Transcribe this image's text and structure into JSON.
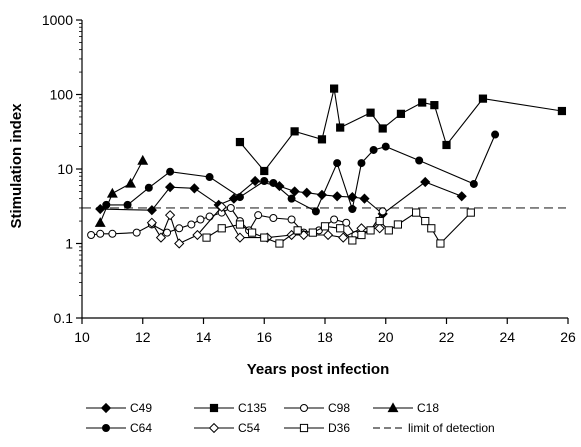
{
  "chart_data": {
    "type": "line",
    "title": "",
    "xlabel": "Years post infection",
    "ylabel": "Stimulation index",
    "xlim": [
      10,
      26
    ],
    "ylim": [
      0.1,
      1000
    ],
    "y_scale": "log",
    "x_ticks": [
      10,
      12,
      14,
      16,
      18,
      20,
      22,
      24,
      26
    ],
    "y_ticks": [
      0.1,
      1,
      10,
      100,
      1000
    ],
    "x_tick_labels": [
      "10",
      "12",
      "14",
      "16",
      "18",
      "20",
      "22",
      "24",
      "26"
    ],
    "y_tick_labels": [
      "0.1",
      "1",
      "10",
      "100",
      "1000"
    ],
    "grid": false,
    "legend_position": "bottom",
    "reference_line": {
      "name": "limit of detection",
      "y": 3,
      "style": "dashed"
    },
    "series": [
      {
        "name": "C49",
        "marker": "diamond-filled",
        "x": [
          10.6,
          12.3,
          12.9,
          13.7,
          14.5,
          15.0,
          15.7,
          16.5,
          17.0,
          17.4,
          17.9,
          18.4,
          18.9,
          19.3,
          19.9,
          21.3,
          22.5
        ],
        "y": [
          2.9,
          2.8,
          5.7,
          5.5,
          3.3,
          4.0,
          6.9,
          5.9,
          5.0,
          4.8,
          4.5,
          4.3,
          4.2,
          4.0,
          2.5,
          6.7,
          4.3
        ]
      },
      {
        "name": "C135",
        "marker": "square-filled",
        "x": [
          15.2,
          16.0,
          17.0,
          17.9,
          18.3,
          18.5,
          19.5,
          19.9,
          20.5,
          21.2,
          21.6,
          22.0,
          23.2,
          25.8
        ],
        "y": [
          23,
          9.4,
          32,
          25,
          120,
          36,
          57,
          35,
          55,
          78,
          72,
          21,
          88,
          60
        ]
      },
      {
        "name": "C98",
        "marker": "circle-open",
        "x": [
          10.3,
          10.6,
          11.0,
          11.8,
          12.3,
          12.8,
          13.2,
          13.6,
          13.9,
          14.2,
          14.6,
          14.9,
          15.2,
          15.5,
          15.8,
          16.3,
          16.9,
          17.3,
          17.8,
          18.3,
          18.7,
          19.0,
          19.5,
          19.9
        ],
        "y": [
          1.3,
          1.35,
          1.35,
          1.4,
          1.8,
          1.4,
          1.6,
          1.8,
          2.1,
          2.3,
          2.6,
          3.0,
          2.0,
          1.5,
          2.4,
          2.2,
          2.1,
          1.4,
          1.5,
          2.1,
          1.9,
          1.3,
          1.5,
          2.7
        ]
      },
      {
        "name": "C18",
        "marker": "triangle-filled",
        "x": [
          10.6,
          11.0,
          11.6,
          12.0
        ],
        "y": [
          1.9,
          4.7,
          6.4,
          13
        ]
      },
      {
        "name": "C64",
        "marker": "circle-filled",
        "x": [
          10.8,
          11.5,
          12.2,
          12.9,
          14.2,
          15.2,
          16.0,
          16.3,
          16.9,
          17.7,
          18.4,
          18.9,
          19.2,
          19.6,
          20.0,
          21.1,
          22.9,
          23.6
        ],
        "y": [
          3.3,
          3.3,
          5.6,
          9.2,
          7.8,
          4.2,
          6.9,
          6.5,
          4.0,
          2.7,
          12,
          2.9,
          12,
          18,
          20,
          13,
          6.3,
          29
        ]
      },
      {
        "name": "C54",
        "marker": "diamond-open",
        "x": [
          12.3,
          12.6,
          12.9,
          13.2,
          13.8,
          14.6,
          15.2,
          16.1,
          16.9,
          17.3,
          18.1,
          18.6,
          19.2,
          19.8
        ],
        "y": [
          1.9,
          1.2,
          2.4,
          1.0,
          1.3,
          3.1,
          1.2,
          1.2,
          1.3,
          1.3,
          1.3,
          1.2,
          1.6,
          1.6
        ]
      },
      {
        "name": "D36",
        "marker": "square-open",
        "x": [
          14.1,
          14.6,
          15.2,
          15.6,
          16.0,
          16.5,
          17.1,
          17.6,
          18.0,
          18.5,
          18.9,
          19.2,
          19.5,
          19.8,
          20.1,
          20.4,
          21.0,
          21.3,
          21.5,
          21.8,
          22.8
        ],
        "y": [
          1.2,
          1.6,
          1.8,
          1.4,
          1.2,
          1.0,
          1.5,
          1.4,
          1.7,
          1.6,
          1.1,
          1.3,
          1.5,
          2.0,
          1.5,
          1.8,
          2.6,
          2.0,
          1.6,
          1.0,
          2.6
        ]
      }
    ]
  }
}
